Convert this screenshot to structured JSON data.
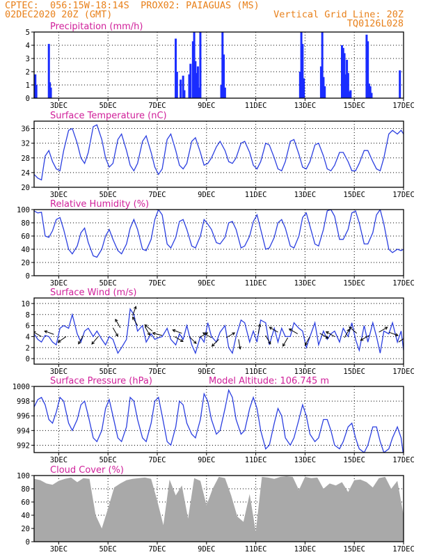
{
  "header": {
    "line1_left": "CPTEC:  056:15W-18:14S  PROX02: PAIAGUAS (MS)",
    "line2_left": "02DEC2020 20Z (GMT)",
    "line2_right": "Vertical Grid Line: 20Z",
    "line3_right": "TQ0126L028"
  },
  "x_ticks": [
    "3DEC",
    "5DEC",
    "7DEC",
    "9DEC",
    "11DEC",
    "13DEC",
    "15DEC",
    "17DEC"
  ],
  "colors": {
    "line": "#2b3fe0",
    "bars": "#1a2cff",
    "cloud": "#a9a9a9",
    "title": "#d0209a",
    "header": "#e8801a"
  },
  "chart_data": [
    {
      "type": "bar",
      "title": "Precipitation (mm/h)",
      "ylim": [
        0,
        5
      ],
      "yticks": [
        "0",
        "1",
        "2",
        "3",
        "4",
        "5"
      ],
      "x_range_days": [
        2.0,
        17.0
      ],
      "x": [
        2.05,
        2.09,
        2.6,
        2.64,
        2.68,
        7.75,
        7.8,
        7.95,
        8.05,
        8.1,
        8.3,
        8.35,
        8.45,
        8.5,
        8.55,
        8.6,
        8.65,
        8.7,
        8.75,
        9.6,
        9.65,
        9.7,
        9.75,
        12.8,
        12.85,
        12.9,
        12.95,
        13.65,
        13.7,
        13.75,
        13.8,
        14.5,
        14.55,
        14.6,
        14.65,
        14.7,
        14.75,
        14.8,
        14.85,
        15.5,
        15.55,
        15.6,
        15.65,
        15.7,
        16.85
      ],
      "values": [
        1.8,
        1.0,
        4.1,
        1.2,
        0.8,
        4.5,
        2.0,
        1.4,
        1.7,
        0.6,
        1.8,
        2.6,
        4.3,
        5.0,
        2.8,
        1.9,
        2.4,
        0.8,
        5.0,
        1.0,
        5.0,
        3.3,
        0.8,
        2.0,
        5.0,
        4.1,
        1.5,
        2.4,
        5.0,
        1.6,
        0.9,
        4.0,
        3.8,
        3.4,
        1.8,
        2.9,
        1.9,
        0.5,
        0.6,
        4.8,
        4.3,
        1.1,
        0.9,
        0.4,
        2.1
      ]
    },
    {
      "type": "line",
      "title": "Surface Temperature (nC)",
      "ylim": [
        20,
        38
      ],
      "yticks": [
        "20",
        "24",
        "28",
        "32",
        "36"
      ],
      "x": [
        2.0,
        2.15,
        2.3,
        2.45,
        2.6,
        2.75,
        2.9,
        3.05,
        3.2,
        3.4,
        3.55,
        3.75,
        3.9,
        4.05,
        4.2,
        4.4,
        4.55,
        4.75,
        4.9,
        5.05,
        5.2,
        5.4,
        5.55,
        5.75,
        5.9,
        6.05,
        6.2,
        6.4,
        6.55,
        6.75,
        6.9,
        7.05,
        7.2,
        7.4,
        7.55,
        7.75,
        7.9,
        8.05,
        8.2,
        8.4,
        8.55,
        8.75,
        8.9,
        9.05,
        9.2,
        9.4,
        9.55,
        9.75,
        9.9,
        10.05,
        10.2,
        10.4,
        10.55,
        10.75,
        10.9,
        11.05,
        11.2,
        11.4,
        11.55,
        11.75,
        11.9,
        12.05,
        12.2,
        12.4,
        12.55,
        12.75,
        12.9,
        13.05,
        13.2,
        13.4,
        13.55,
        13.75,
        13.9,
        14.05,
        14.2,
        14.4,
        14.55,
        14.75,
        14.9,
        15.05,
        15.2,
        15.4,
        15.55,
        15.75,
        15.9,
        16.05,
        16.2,
        16.4,
        16.55,
        16.75,
        16.9,
        17.0
      ],
      "values": [
        23.5,
        22.5,
        22.0,
        28.5,
        30.0,
        27.0,
        25.0,
        24.5,
        30.0,
        35.5,
        36.0,
        32.0,
        28.0,
        26.5,
        29.5,
        36.5,
        37.0,
        33.0,
        28.0,
        25.5,
        26.5,
        33.0,
        34.5,
        30.0,
        26.0,
        24.5,
        26.5,
        32.5,
        34.0,
        29.5,
        25.5,
        23.5,
        25.0,
        33.0,
        34.5,
        30.0,
        26.0,
        25.0,
        26.5,
        32.5,
        33.5,
        29.5,
        26.0,
        26.5,
        28.0,
        31.0,
        32.5,
        30.0,
        27.0,
        26.5,
        28.0,
        32.0,
        32.5,
        29.5,
        26.0,
        25.0,
        27.0,
        32.0,
        31.5,
        28.0,
        25.0,
        24.5,
        27.0,
        32.5,
        33.0,
        29.0,
        25.5,
        25.0,
        27.0,
        31.5,
        32.0,
        28.5,
        25.0,
        24.5,
        26.0,
        29.5,
        29.5,
        27.0,
        24.5,
        24.5,
        26.5,
        30.0,
        30.0,
        27.0,
        25.0,
        24.5,
        28.0,
        34.5,
        35.5,
        34.5,
        35.5,
        34.5
      ]
    },
    {
      "type": "line",
      "title": "Relative Humidity (%)",
      "ylim": [
        0,
        100
      ],
      "yticks": [
        "0",
        "20",
        "40",
        "60",
        "80",
        "100"
      ],
      "x": [
        2.0,
        2.15,
        2.3,
        2.45,
        2.6,
        2.75,
        2.9,
        3.05,
        3.2,
        3.4,
        3.55,
        3.75,
        3.9,
        4.05,
        4.2,
        4.4,
        4.55,
        4.75,
        4.9,
        5.05,
        5.2,
        5.4,
        5.55,
        5.75,
        5.9,
        6.05,
        6.2,
        6.4,
        6.55,
        6.75,
        6.9,
        7.05,
        7.2,
        7.4,
        7.55,
        7.75,
        7.9,
        8.05,
        8.2,
        8.4,
        8.55,
        8.75,
        8.9,
        9.05,
        9.2,
        9.4,
        9.55,
        9.75,
        9.9,
        10.05,
        10.2,
        10.4,
        10.55,
        10.75,
        10.9,
        11.05,
        11.2,
        11.4,
        11.55,
        11.75,
        11.9,
        12.05,
        12.2,
        12.4,
        12.55,
        12.75,
        12.9,
        13.05,
        13.2,
        13.4,
        13.55,
        13.75,
        13.9,
        14.05,
        14.2,
        14.4,
        14.55,
        14.75,
        14.9,
        15.05,
        15.2,
        15.4,
        15.55,
        15.75,
        15.9,
        16.05,
        16.2,
        16.4,
        16.55,
        16.75,
        16.9,
        17.0
      ],
      "values": [
        98,
        95,
        96,
        60,
        58,
        68,
        85,
        88,
        70,
        40,
        33,
        45,
        65,
        72,
        50,
        30,
        28,
        40,
        60,
        70,
        55,
        38,
        33,
        48,
        72,
        85,
        70,
        40,
        38,
        55,
        85,
        100,
        92,
        48,
        42,
        58,
        82,
        85,
        70,
        45,
        42,
        60,
        85,
        78,
        70,
        50,
        48,
        58,
        80,
        82,
        70,
        42,
        45,
        60,
        82,
        92,
        70,
        40,
        42,
        58,
        80,
        85,
        72,
        45,
        42,
        60,
        88,
        95,
        75,
        48,
        45,
        70,
        98,
        100,
        90,
        55,
        55,
        70,
        95,
        98,
        80,
        48,
        48,
        65,
        92,
        100,
        78,
        40,
        35,
        40,
        38,
        40
      ]
    },
    {
      "type": "line",
      "title": "Surface Wind (m/s)",
      "ylim": [
        -1,
        11
      ],
      "yticks": [
        "0",
        "2",
        "4",
        "6",
        "8",
        "10"
      ],
      "x": [
        2.0,
        2.15,
        2.3,
        2.45,
        2.6,
        2.75,
        2.9,
        3.05,
        3.2,
        3.4,
        3.55,
        3.75,
        3.9,
        4.05,
        4.2,
        4.4,
        4.55,
        4.75,
        4.9,
        5.05,
        5.2,
        5.4,
        5.55,
        5.75,
        5.9,
        6.05,
        6.2,
        6.4,
        6.55,
        6.75,
        6.9,
        7.05,
        7.2,
        7.4,
        7.55,
        7.75,
        7.9,
        8.05,
        8.2,
        8.4,
        8.55,
        8.75,
        8.9,
        9.05,
        9.2,
        9.4,
        9.55,
        9.75,
        9.9,
        10.05,
        10.2,
        10.4,
        10.55,
        10.75,
        10.9,
        11.05,
        11.2,
        11.4,
        11.55,
        11.75,
        11.9,
        12.05,
        12.2,
        12.4,
        12.55,
        12.75,
        12.9,
        13.05,
        13.2,
        13.4,
        13.55,
        13.75,
        13.9,
        14.05,
        14.2,
        14.4,
        14.55,
        14.75,
        14.9,
        15.05,
        15.2,
        15.4,
        15.55,
        15.75,
        15.9,
        16.05,
        16.2,
        16.4,
        16.55,
        16.75,
        16.9,
        17.0
      ],
      "values": [
        4.5,
        3.5,
        3.0,
        4.2,
        4.0,
        3.0,
        2.5,
        5.5,
        6.0,
        5.5,
        8.0,
        4.5,
        3.0,
        5.0,
        5.5,
        4.0,
        5.0,
        3.5,
        2.5,
        4.0,
        3.5,
        1.0,
        2.0,
        3.5,
        9.0,
        8.0,
        5.0,
        6.0,
        3.0,
        4.5,
        3.5,
        3.8,
        4.0,
        5.5,
        3.5,
        2.5,
        4.5,
        3.5,
        6.0,
        2.5,
        1.0,
        4.0,
        3.0,
        6.5,
        4.0,
        3.0,
        4.8,
        6.0,
        2.0,
        1.0,
        4.0,
        7.0,
        6.5,
        3.0,
        5.0,
        3.0,
        7.0,
        6.5,
        2.5,
        5.5,
        3.0,
        5.5,
        4.0,
        4.0,
        6.5,
        5.5,
        5.0,
        2.0,
        4.0,
        6.5,
        2.5,
        5.0,
        3.5,
        4.5,
        5.0,
        3.0,
        5.5,
        4.0,
        6.5,
        3.5,
        1.5,
        6.0,
        3.0,
        6.5,
        4.0,
        1.0,
        5.0,
        4.5,
        6.5,
        3.0,
        5.0,
        1.5
      ],
      "arrows": [
        [
          2.3,
          4.0,
          150
        ],
        [
          2.8,
          4.4,
          160
        ],
        [
          3.3,
          4.0,
          215
        ],
        [
          4.0,
          4.2,
          240
        ],
        [
          4.6,
          4.0,
          230
        ],
        [
          5.2,
          5.6,
          300
        ],
        [
          5.5,
          5.6,
          120
        ],
        [
          6.0,
          7.8,
          70
        ],
        [
          6.2,
          6.0,
          120
        ],
        [
          6.5,
          5.8,
          300
        ],
        [
          6.8,
          5.0,
          140
        ],
        [
          7.2,
          4.2,
          165
        ],
        [
          7.7,
          4.0,
          330
        ],
        [
          8.0,
          4.6,
          160
        ],
        [
          8.3,
          4.0,
          315
        ],
        [
          8.7,
          3.8,
          30
        ],
        [
          9.2,
          3.8,
          150
        ],
        [
          9.5,
          3.5,
          225
        ],
        [
          9.8,
          3.8,
          30
        ],
        [
          10.3,
          3.5,
          280
        ],
        [
          11.1,
          4.5,
          80
        ],
        [
          11.4,
          4.2,
          300
        ],
        [
          11.9,
          4.8,
          150
        ],
        [
          12.3,
          3.8,
          240
        ],
        [
          12.7,
          4.5,
          150
        ],
        [
          13.2,
          4.0,
          240
        ],
        [
          13.6,
          4.6,
          330
        ],
        [
          14.2,
          4.0,
          150
        ],
        [
          14.6,
          3.8,
          60
        ],
        [
          15.1,
          4.6,
          140
        ],
        [
          15.6,
          4.2,
          210
        ],
        [
          16.0,
          4.8,
          30
        ],
        [
          16.4,
          4.8,
          340
        ],
        [
          16.8,
          3.0,
          35
        ]
      ]
    },
    {
      "type": "line",
      "title": "Surface Pressure (hPa)",
      "annotation": "Model Altitude: 106.745 m",
      "ylim": [
        991,
        1000
      ],
      "yticks": [
        "992",
        "994",
        "996",
        "998",
        "1000"
      ],
      "x": [
        2.0,
        2.15,
        2.3,
        2.45,
        2.6,
        2.75,
        2.9,
        3.05,
        3.2,
        3.4,
        3.55,
        3.75,
        3.9,
        4.05,
        4.2,
        4.4,
        4.55,
        4.75,
        4.9,
        5.05,
        5.2,
        5.4,
        5.55,
        5.75,
        5.9,
        6.05,
        6.2,
        6.4,
        6.55,
        6.75,
        6.9,
        7.05,
        7.2,
        7.4,
        7.55,
        7.75,
        7.9,
        8.05,
        8.2,
        8.4,
        8.55,
        8.75,
        8.9,
        9.05,
        9.2,
        9.4,
        9.55,
        9.75,
        9.9,
        10.05,
        10.2,
        10.4,
        10.55,
        10.75,
        10.9,
        11.05,
        11.2,
        11.4,
        11.55,
        11.75,
        11.9,
        12.05,
        12.2,
        12.4,
        12.55,
        12.75,
        12.9,
        13.05,
        13.2,
        13.4,
        13.55,
        13.75,
        13.9,
        14.05,
        14.2,
        14.4,
        14.55,
        14.75,
        14.9,
        15.05,
        15.2,
        15.4,
        15.55,
        15.75,
        15.9,
        16.05,
        16.2,
        16.4,
        16.55,
        16.75,
        16.9,
        17.0
      ],
      "values": [
        997.2,
        998.2,
        998.5,
        997.5,
        995.5,
        995.0,
        996.5,
        998.5,
        998.0,
        995.0,
        994.0,
        995.5,
        997.5,
        998.0,
        996.0,
        993.0,
        992.5,
        994.0,
        997.0,
        998.2,
        996.0,
        993.0,
        992.5,
        994.5,
        998.5,
        998.0,
        995.5,
        993.0,
        992.5,
        995.0,
        998.0,
        998.5,
        996.0,
        992.5,
        992.0,
        994.5,
        998.0,
        997.5,
        995.0,
        993.5,
        993.0,
        995.5,
        999.0,
        998.0,
        995.5,
        993.5,
        994.0,
        997.0,
        999.5,
        998.5,
        995.5,
        993.5,
        994.0,
        997.0,
        998.5,
        997.0,
        994.0,
        991.5,
        992.0,
        995.0,
        997.0,
        996.0,
        993.0,
        992.0,
        993.0,
        995.5,
        997.5,
        996.0,
        993.5,
        992.5,
        993.0,
        995.5,
        995.5,
        994.0,
        992.0,
        991.5,
        992.5,
        994.5,
        995.0,
        993.0,
        991.5,
        991.0,
        992.0,
        994.5,
        994.5,
        992.5,
        991.0,
        991.5,
        993.0,
        994.5,
        993.0,
        990.5
      ]
    },
    {
      "type": "area",
      "title": "Cloud Cover (%)",
      "ylim": [
        0,
        100
      ],
      "yticks": [
        "0",
        "20",
        "40",
        "60",
        "80",
        "100"
      ],
      "x": [
        2.0,
        2.25,
        2.5,
        2.75,
        3.0,
        3.25,
        3.5,
        3.75,
        4.0,
        4.25,
        4.5,
        4.75,
        5.0,
        5.25,
        5.5,
        5.75,
        6.0,
        6.25,
        6.5,
        6.75,
        7.0,
        7.25,
        7.5,
        7.75,
        8.0,
        8.25,
        8.5,
        8.75,
        9.0,
        9.25,
        9.5,
        9.75,
        10.0,
        10.25,
        10.5,
        10.75,
        11.0,
        11.25,
        11.5,
        11.75,
        12.0,
        12.25,
        12.5,
        12.75,
        13.0,
        13.25,
        13.5,
        13.75,
        14.0,
        14.25,
        14.5,
        14.75,
        15.0,
        15.25,
        15.5,
        15.75,
        16.0,
        16.25,
        16.5,
        16.75,
        17.0
      ],
      "values": [
        95,
        93,
        88,
        86,
        92,
        95,
        97,
        90,
        96,
        95,
        40,
        20,
        50,
        82,
        88,
        93,
        95,
        96,
        97,
        95,
        62,
        25,
        94,
        70,
        85,
        35,
        96,
        92,
        55,
        80,
        98,
        96,
        70,
        38,
        30,
        72,
        15,
        98,
        97,
        95,
        98,
        99,
        98,
        78,
        98,
        96,
        97,
        80,
        88,
        85,
        90,
        75,
        93,
        94,
        90,
        82,
        96,
        98,
        80,
        92,
        40
      ]
    }
  ]
}
